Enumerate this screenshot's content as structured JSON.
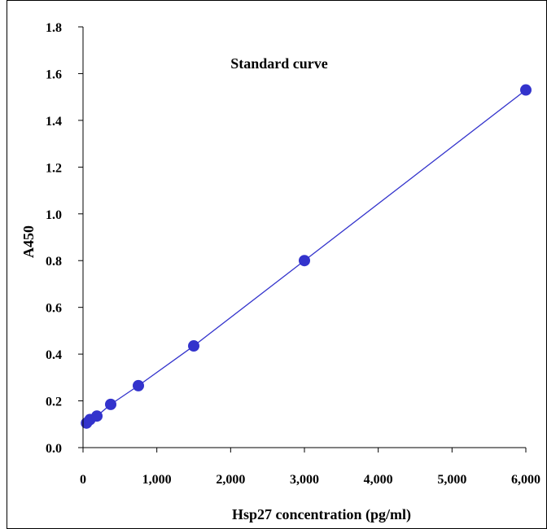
{
  "chart_data": {
    "type": "scatter",
    "title": "Standard curve",
    "xlabel": "Hsp27 concentration (pg/ml)",
    "ylabel": "A450",
    "xlim": [
      0,
      6000
    ],
    "ylim": [
      0,
      1.8
    ],
    "x_ticks": [
      "0",
      "1,000",
      "2,000",
      "3,000",
      "4,000",
      "5,000",
      "6,000"
    ],
    "x_tick_values": [
      0,
      1000,
      2000,
      3000,
      4000,
      5000,
      6000
    ],
    "y_ticks": [
      "0.0",
      "0.2",
      "0.4",
      "0.6",
      "0.8",
      "1.0",
      "1.2",
      "1.4",
      "1.6",
      "1.8"
    ],
    "y_tick_values": [
      0,
      0.2,
      0.4,
      0.6,
      0.8,
      1.0,
      1.2,
      1.4,
      1.6,
      1.8
    ],
    "grid": false,
    "legend": "none",
    "series": [
      {
        "x": [
          47,
          94,
          188,
          375,
          750,
          1500,
          3000,
          6000
        ],
        "y": [
          0.105,
          0.12,
          0.135,
          0.185,
          0.265,
          0.435,
          0.8,
          1.53
        ],
        "marker_color": "#3333cc",
        "line_color": "#3333cc",
        "fit_line": true
      }
    ]
  }
}
